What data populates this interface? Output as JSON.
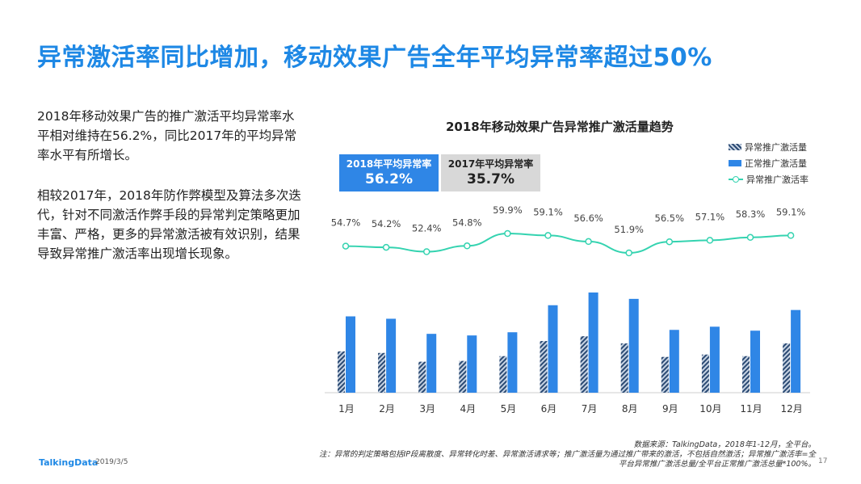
{
  "title": "异常激活率同比增加，移动效果广告全年平均异常率超过50%",
  "paragraphs": [
    "2018年移动效果广告的推广激活平均异常率水平相对维持在56.2%，同比2017年的平均异常率水平有所增长。",
    "相较2017年，2018年防作弊模型及算法多次迭代，针对不同激活作弊手段的异常判定策略更加丰富、严格，更多的异常激活被有效识别，结果导致异常推广激活率出现增长现象。"
  ],
  "averages": [
    {
      "label": "2018年平均异常率",
      "value": "56.2%"
    },
    {
      "label": "2017年平均异常率",
      "value": "35.7%"
    }
  ],
  "colors": {
    "title": "#1e88e5",
    "normal_bar": "#2f86e6",
    "abnormal_bar_hatch": "#2b4a73",
    "rate_line": "#34d3b0"
  },
  "chart_data": {
    "type": "bar",
    "title": "2018年移动效果广告异常推广激活量趋势",
    "categories": [
      "1月",
      "2月",
      "3月",
      "4月",
      "5月",
      "6月",
      "7月",
      "8月",
      "9月",
      "10月",
      "11月",
      "12月"
    ],
    "series": [
      {
        "name": "异常推广激活量",
        "style": "hatched",
        "values": [
          52,
          50,
          39,
          40,
          46,
          65,
          71,
          62,
          45,
          48,
          46,
          62
        ]
      },
      {
        "name": "正常推广激活量",
        "style": "solid",
        "values": [
          96,
          93,
          74,
          72,
          76,
          110,
          126,
          118,
          79,
          83,
          78,
          104
        ]
      },
      {
        "name": "异常推广激活率",
        "type": "line",
        "values": [
          54.7,
          54.2,
          52.4,
          54.8,
          59.9,
          59.1,
          56.6,
          51.9,
          56.5,
          57.1,
          58.3,
          59.1
        ]
      }
    ],
    "rate_labels": [
      "54.7%",
      "54.2%",
      "52.4%",
      "54.8%",
      "59.9%",
      "59.1%",
      "56.6%",
      "51.9%",
      "56.5%",
      "57.1%",
      "58.3%",
      "59.1%"
    ],
    "legend": "right",
    "grid": false
  },
  "source": "数据来源：TalkingData，2018年1-12月，全平台。",
  "notes": [
    "注：异常的判定策略包括IP段离散度、异常转化时差、异常激活请求等；推广激活量为通过推广带来的激活，不包括自然激活；异常推广激活率=全",
    "平台异常推广激活总量/全平台正常推广激活总量*100%。"
  ],
  "footer": {
    "brand": "TalkingData",
    "date": "2019/3/5",
    "page": "17"
  }
}
